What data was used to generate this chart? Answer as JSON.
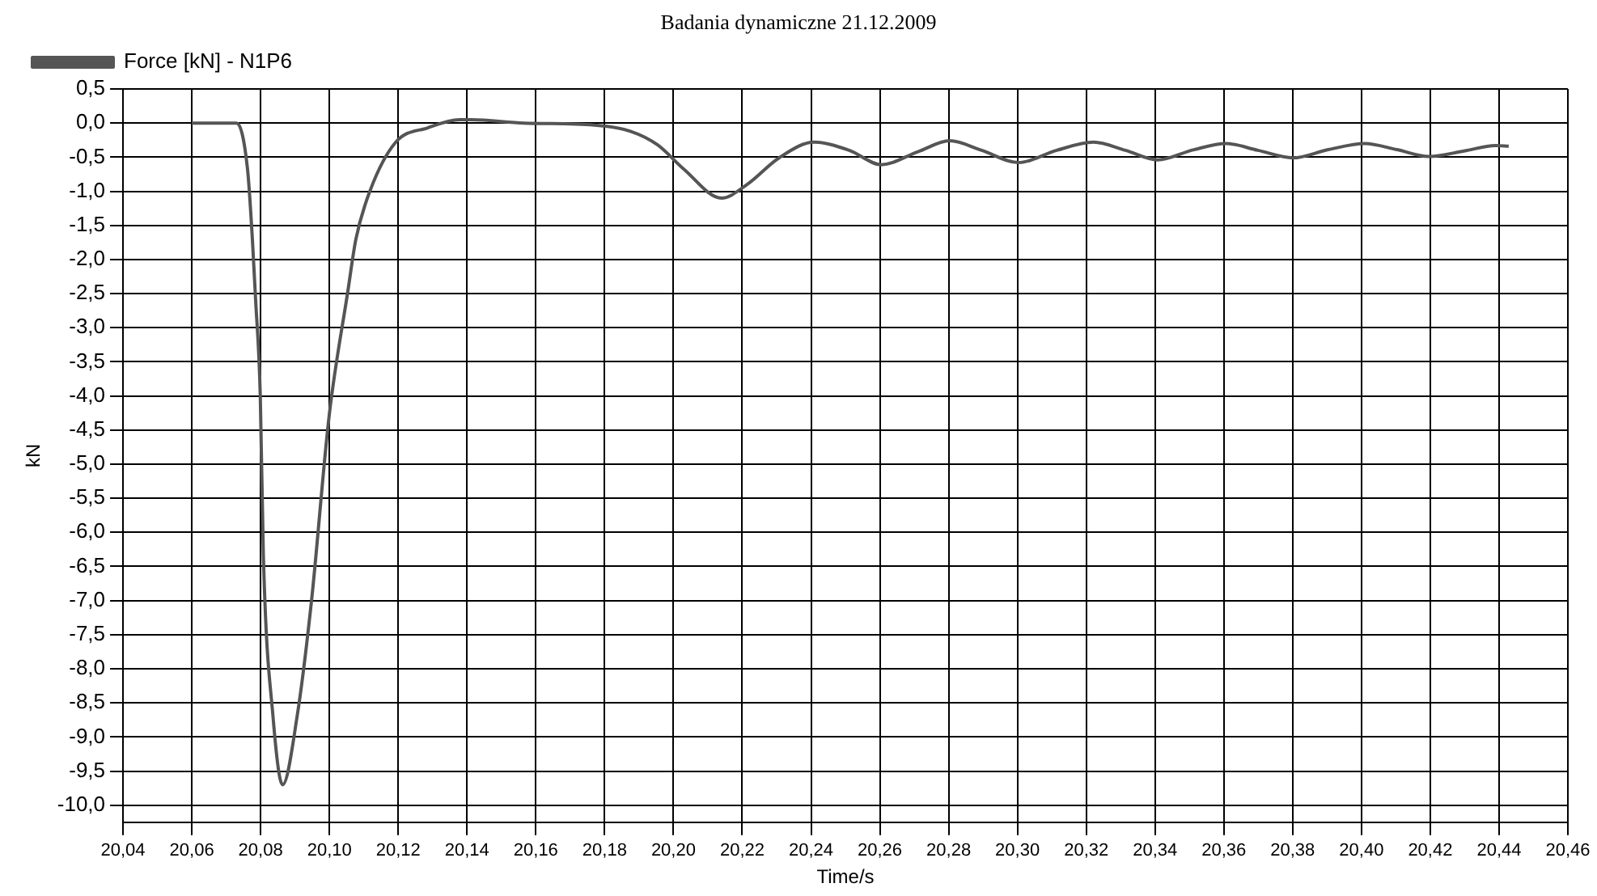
{
  "chart_data": {
    "type": "line",
    "title": "Badania dynamiczne  21.12.2009",
    "xlabel": "Time/s",
    "ylabel": "kN",
    "legend": "top left",
    "grid": true,
    "marker": "none",
    "line_style": "solid",
    "xlim": [
      20.04,
      20.46
    ],
    "xticks": [
      {
        "value": 20.04,
        "label": "20,04"
      },
      {
        "value": 20.06,
        "label": "20,06"
      },
      {
        "value": 20.08,
        "label": "20,08"
      },
      {
        "value": 20.1,
        "label": "20,10"
      },
      {
        "value": 20.12,
        "label": "20,12"
      },
      {
        "value": 20.14,
        "label": "20,14"
      },
      {
        "value": 20.16,
        "label": "20,16"
      },
      {
        "value": 20.18,
        "label": "20,18"
      },
      {
        "value": 20.2,
        "label": "20,20"
      },
      {
        "value": 20.22,
        "label": "20,22"
      },
      {
        "value": 20.24,
        "label": "20,24"
      },
      {
        "value": 20.26,
        "label": "20,26"
      },
      {
        "value": 20.28,
        "label": "20,28"
      },
      {
        "value": 20.3,
        "label": "20,30"
      },
      {
        "value": 20.32,
        "label": "20,32"
      },
      {
        "value": 20.34,
        "label": "20,34"
      },
      {
        "value": 20.36,
        "label": "20,36"
      },
      {
        "value": 20.38,
        "label": "20,38"
      },
      {
        "value": 20.4,
        "label": "20,40"
      },
      {
        "value": 20.42,
        "label": "20,42"
      },
      {
        "value": 20.44,
        "label": "20,44"
      },
      {
        "value": 20.46,
        "label": "20,46"
      }
    ],
    "ylim": [
      -10.25,
      0.5
    ],
    "yticks": [
      {
        "value": -10,
        "label": "-10,0"
      },
      {
        "value": -9.5,
        "label": "-9,5"
      },
      {
        "value": -9,
        "label": "-9,0"
      },
      {
        "value": -8.5,
        "label": "-8,5"
      },
      {
        "value": -8,
        "label": "-8,0"
      },
      {
        "value": -7.5,
        "label": "-7,5"
      },
      {
        "value": -7,
        "label": "-7,0"
      },
      {
        "value": -6.5,
        "label": "-6,5"
      },
      {
        "value": -6,
        "label": "-6,0"
      },
      {
        "value": -5.5,
        "label": "-5,5"
      },
      {
        "value": -5,
        "label": "-5,0"
      },
      {
        "value": -4.5,
        "label": "-4,5"
      },
      {
        "value": -4,
        "label": "-4,0"
      },
      {
        "value": -3.5,
        "label": "-3,5"
      },
      {
        "value": -3,
        "label": "-3,0"
      },
      {
        "value": -2.5,
        "label": "-2,5"
      },
      {
        "value": -2,
        "label": "-2,0"
      },
      {
        "value": -1.5,
        "label": "-1,5"
      },
      {
        "value": -1,
        "label": "-1,0"
      },
      {
        "value": -0.5,
        "label": "-0,5"
      },
      {
        "value": 0,
        "label": "0,0"
      },
      {
        "value": 0.5,
        "label": "0,5"
      }
    ],
    "series": [
      {
        "name": "Force [kN] - N1P6",
        "color": "#555555",
        "x": [
          20.06,
          20.073,
          20.0762,
          20.0776,
          20.0785,
          20.0799,
          20.0808,
          20.0836,
          20.0864,
          20.0906,
          20.0948,
          20.0999,
          20.1054,
          20.1077,
          20.1119,
          20.1193,
          20.1286,
          20.1379,
          20.1412,
          20.1565,
          20.177,
          20.1875,
          20.1954,
          20.2029,
          20.214,
          20.2214,
          20.2307,
          20.2409,
          20.2511,
          20.2604,
          20.2711,
          20.2803,
          20.2896,
          20.3003,
          20.3114,
          20.3221,
          20.3314,
          20.3407,
          20.3513,
          20.3606,
          20.3699,
          20.3801,
          20.3903,
          20.401,
          20.4103,
          20.4196,
          20.4298,
          20.439,
          20.4428
        ],
        "values": [
          0,
          0,
          -0.68,
          -1.7,
          -2.55,
          -4.0,
          -6.35,
          -8.7,
          -9.7,
          -8.7,
          -7.0,
          -4.3,
          -2.45,
          -1.7,
          -0.98,
          -0.28,
          -0.07,
          0.05,
          0.05,
          0,
          -0.03,
          -0.12,
          -0.32,
          -0.67,
          -1.1,
          -0.9,
          -0.51,
          -0.28,
          -0.4,
          -0.61,
          -0.42,
          -0.26,
          -0.4,
          -0.58,
          -0.4,
          -0.28,
          -0.4,
          -0.54,
          -0.39,
          -0.3,
          -0.4,
          -0.51,
          -0.39,
          -0.3,
          -0.39,
          -0.49,
          -0.41,
          -0.33,
          -0.34
        ]
      }
    ]
  }
}
